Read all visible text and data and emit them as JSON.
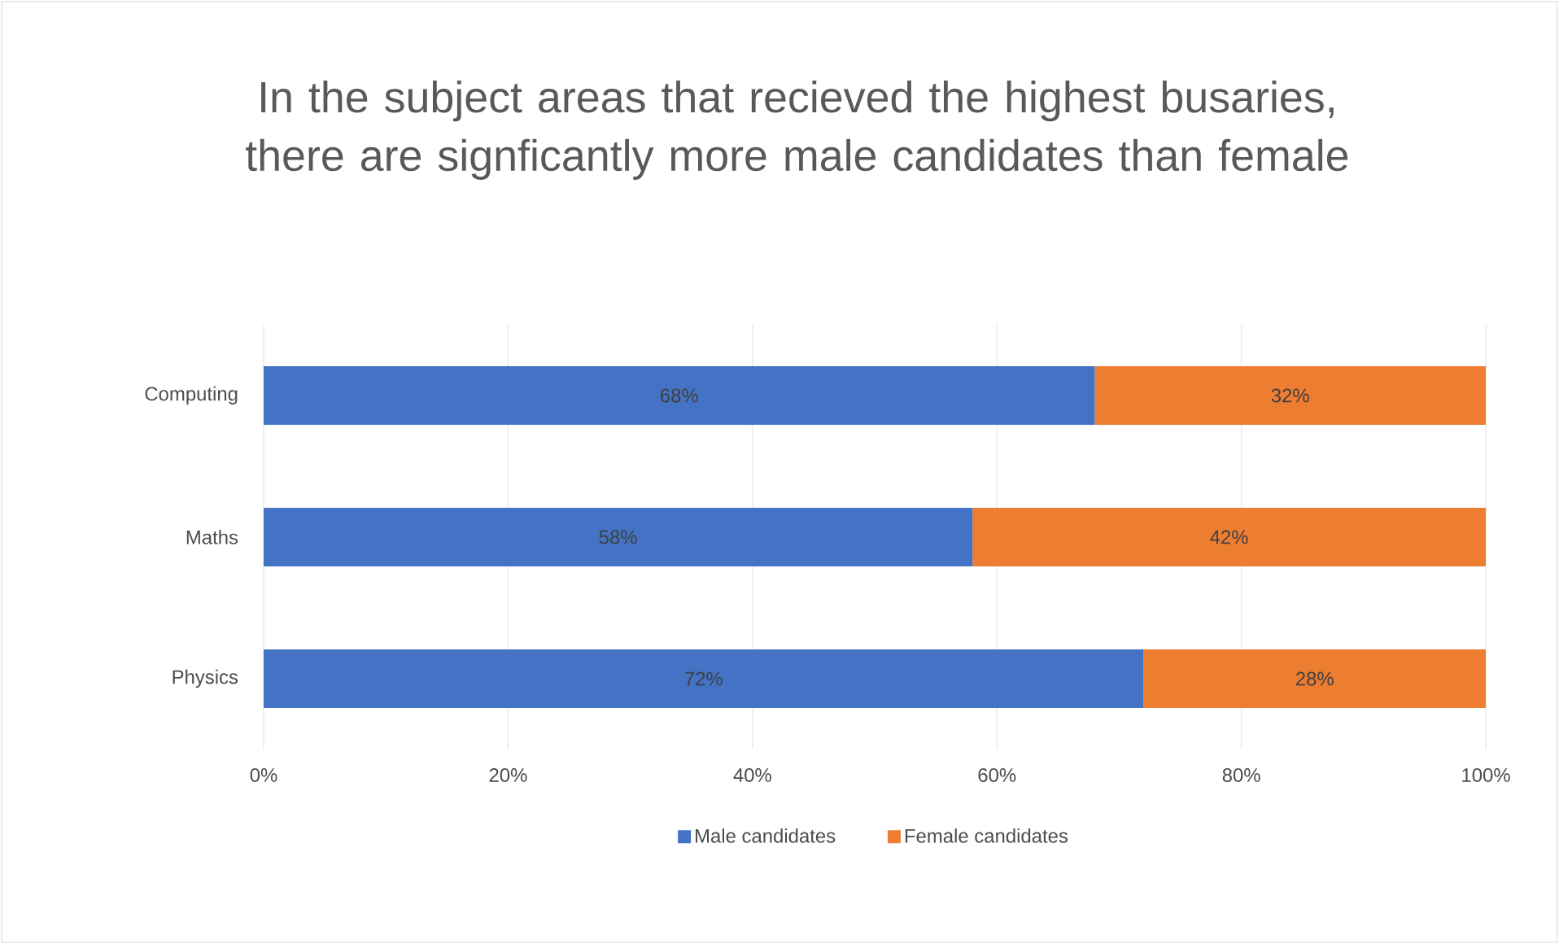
{
  "chart_data": {
    "type": "bar",
    "orientation": "horizontal",
    "stacked": true,
    "title": "In the subject areas that recieved the highest busaries, there are signficantly more male candidates than female",
    "categories": [
      "Computing",
      "Maths",
      "Physics"
    ],
    "series": [
      {
        "name": "Male candidates",
        "color": "#4472c4",
        "values": [
          68,
          58,
          72
        ],
        "value_labels": [
          "68%",
          "58%",
          "72%"
        ]
      },
      {
        "name": "Female candidates",
        "color": "#ed7d31",
        "values": [
          32,
          42,
          28
        ],
        "value_labels": [
          "32%",
          "42%",
          "28%"
        ]
      }
    ],
    "xlim": [
      0,
      100
    ],
    "xticks": [
      {
        "value": 0,
        "label": "0%"
      },
      {
        "value": 20,
        "label": "20%"
      },
      {
        "value": 40,
        "label": "40%"
      },
      {
        "value": 60,
        "label": "60%"
      },
      {
        "value": 80,
        "label": "80%"
      },
      {
        "value": 100,
        "label": "100%"
      }
    ],
    "grid": "x",
    "legend": "bottom"
  }
}
